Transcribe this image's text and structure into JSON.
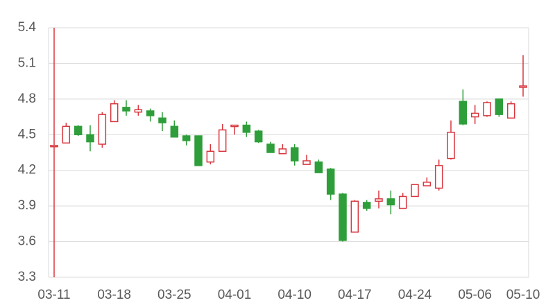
{
  "chart_data": {
    "type": "candlestick",
    "categories": [
      "03-11",
      null,
      null,
      null,
      null,
      "03-18",
      null,
      null,
      null,
      null,
      "03-25",
      null,
      null,
      null,
      null,
      "04-01",
      null,
      null,
      null,
      null,
      "04-10",
      null,
      null,
      null,
      null,
      "04-17",
      null,
      null,
      null,
      null,
      "04-24",
      null,
      null,
      null,
      null,
      "05-06",
      null,
      null,
      null,
      "05-10"
    ],
    "open": [
      4.4,
      4.43,
      4.57,
      4.5,
      4.42,
      4.61,
      4.73,
      4.69,
      4.7,
      4.64,
      4.57,
      4.49,
      4.49,
      4.27,
      4.36,
      4.57,
      4.58,
      4.53,
      4.42,
      4.34,
      4.39,
      4.25,
      4.27,
      4.21,
      4.0,
      3.68,
      3.93,
      3.94,
      3.96,
      3.88,
      3.98,
      4.07,
      4.05,
      4.3,
      4.78,
      4.65,
      4.66,
      4.8,
      4.64,
      4.9
    ],
    "high": [
      5.4,
      4.6,
      4.58,
      4.58,
      4.69,
      4.79,
      4.79,
      4.75,
      4.72,
      4.69,
      4.62,
      4.5,
      4.49,
      4.42,
      4.59,
      4.58,
      4.61,
      4.54,
      4.44,
      4.42,
      4.42,
      4.33,
      4.29,
      4.22,
      4.01,
      3.95,
      3.95,
      4.03,
      4.03,
      4.01,
      4.08,
      4.14,
      4.29,
      4.62,
      4.88,
      4.75,
      4.78,
      4.8,
      4.78,
      5.17
    ],
    "low": [
      3.3,
      4.43,
      4.49,
      4.36,
      4.39,
      4.61,
      4.66,
      4.66,
      4.61,
      4.53,
      4.48,
      4.41,
      4.24,
      4.25,
      4.36,
      4.5,
      4.48,
      4.43,
      4.35,
      4.34,
      4.24,
      4.25,
      4.18,
      3.95,
      3.6,
      3.68,
      3.86,
      3.88,
      3.83,
      3.88,
      3.98,
      4.07,
      4.03,
      4.29,
      4.58,
      4.59,
      4.65,
      4.65,
      4.64,
      4.82
    ],
    "close": [
      4.41,
      4.57,
      4.5,
      4.44,
      4.67,
      4.76,
      4.7,
      4.71,
      4.66,
      4.6,
      4.48,
      4.45,
      4.24,
      4.36,
      4.54,
      4.58,
      4.52,
      4.44,
      4.35,
      4.38,
      4.28,
      4.28,
      4.18,
      4.0,
      3.61,
      3.94,
      3.88,
      3.96,
      3.91,
      3.98,
      4.08,
      4.1,
      4.24,
      4.52,
      4.59,
      4.68,
      4.77,
      4.67,
      4.76,
      4.91
    ],
    "up_color": "#d9363e",
    "down_color": "#2e9e3a",
    "ylim": [
      3.3,
      5.4
    ],
    "yticks": [
      3.3,
      3.6,
      3.9,
      4.2,
      4.5,
      4.8,
      5.1,
      5.4
    ],
    "grid": true
  }
}
